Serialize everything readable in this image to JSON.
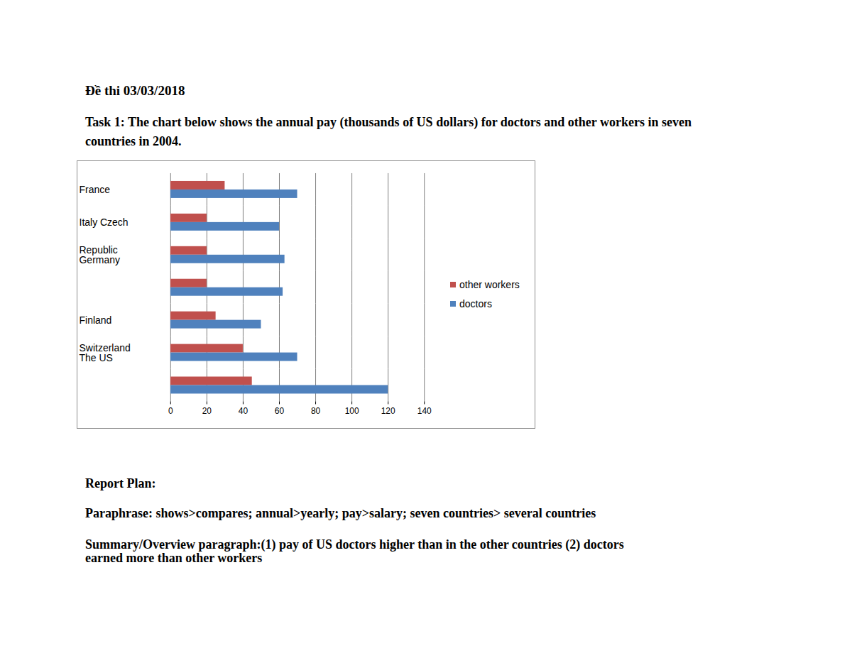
{
  "page": {
    "heading": "Đề thi 03/03/2018",
    "task": "Task 1: The chart below shows the annual pay (thousands of US dollars) for doctors and other workers in seven countries in 2004.",
    "plan_heading": "Report Plan:",
    "paraphrase": "Paraphrase: shows>compares; annual>yearly; pay>salary; seven countries> several countries",
    "summary": "Summary/Overview paragraph:(1) pay of US doctors higher than in the other countries (2) doctors earned more than other workers"
  },
  "chart_data": {
    "type": "bar",
    "orientation": "horizontal",
    "categories": [
      "France",
      "Italy Czech",
      "Republic\nGermany",
      null,
      "Finland",
      "Switzerland\nThe US",
      null
    ],
    "series": [
      {
        "name": "other workers",
        "color": "#c0504d",
        "values": [
          30,
          20,
          20,
          20,
          25,
          40,
          45
        ]
      },
      {
        "name": "doctors",
        "color": "#4f81bd",
        "values": [
          70,
          60,
          63,
          62,
          50,
          70,
          120
        ]
      }
    ],
    "xlim": [
      0,
      140
    ],
    "xticks": [
      0,
      20,
      40,
      60,
      80,
      100,
      120,
      140
    ],
    "grid": true,
    "legend": "right"
  }
}
